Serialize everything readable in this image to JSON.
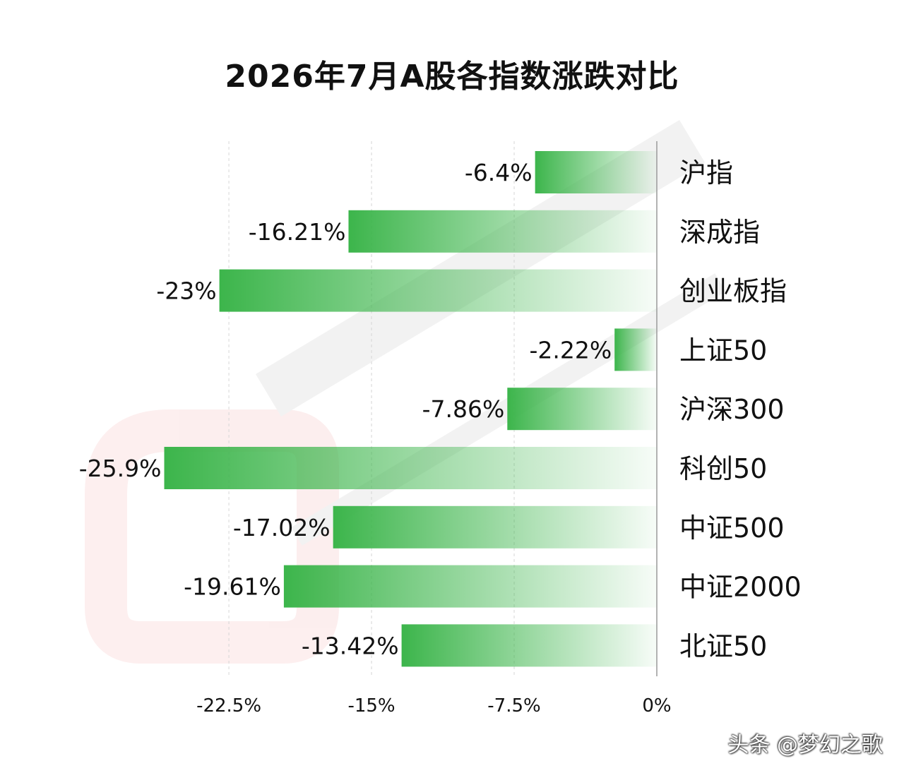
{
  "title": "2026年7月A股各指数涨跌对比",
  "credit": "头条 @梦幻之歌",
  "colors": {
    "bar": "#3cb54b",
    "axis": "#999999",
    "grid": "#d6d6d6",
    "text": "#111111"
  },
  "chart_data": {
    "type": "bar",
    "orientation": "horizontal",
    "title": "2026年7月A股各指数涨跌对比",
    "categories": [
      "沪指",
      "深成指",
      "创业板指",
      "上证50",
      "沪深300",
      "科创50",
      "中证500",
      "中证2000",
      "北证50"
    ],
    "values": [
      -6.4,
      -16.21,
      -23,
      -2.22,
      -7.86,
      -25.9,
      -17.02,
      -19.61,
      -13.42
    ],
    "value_labels": [
      "-6.4%",
      "-16.21%",
      "-23%",
      "-2.22%",
      "-7.86%",
      "-25.9%",
      "-17.02%",
      "-19.61%",
      "-13.42%"
    ],
    "x_ticks": [
      -22.5,
      -15,
      -7.5,
      0
    ],
    "x_tick_labels": [
      "-22.5%",
      "-15%",
      "-7.5%",
      "0%"
    ],
    "xlim": [
      -26,
      0
    ],
    "grid": true
  }
}
